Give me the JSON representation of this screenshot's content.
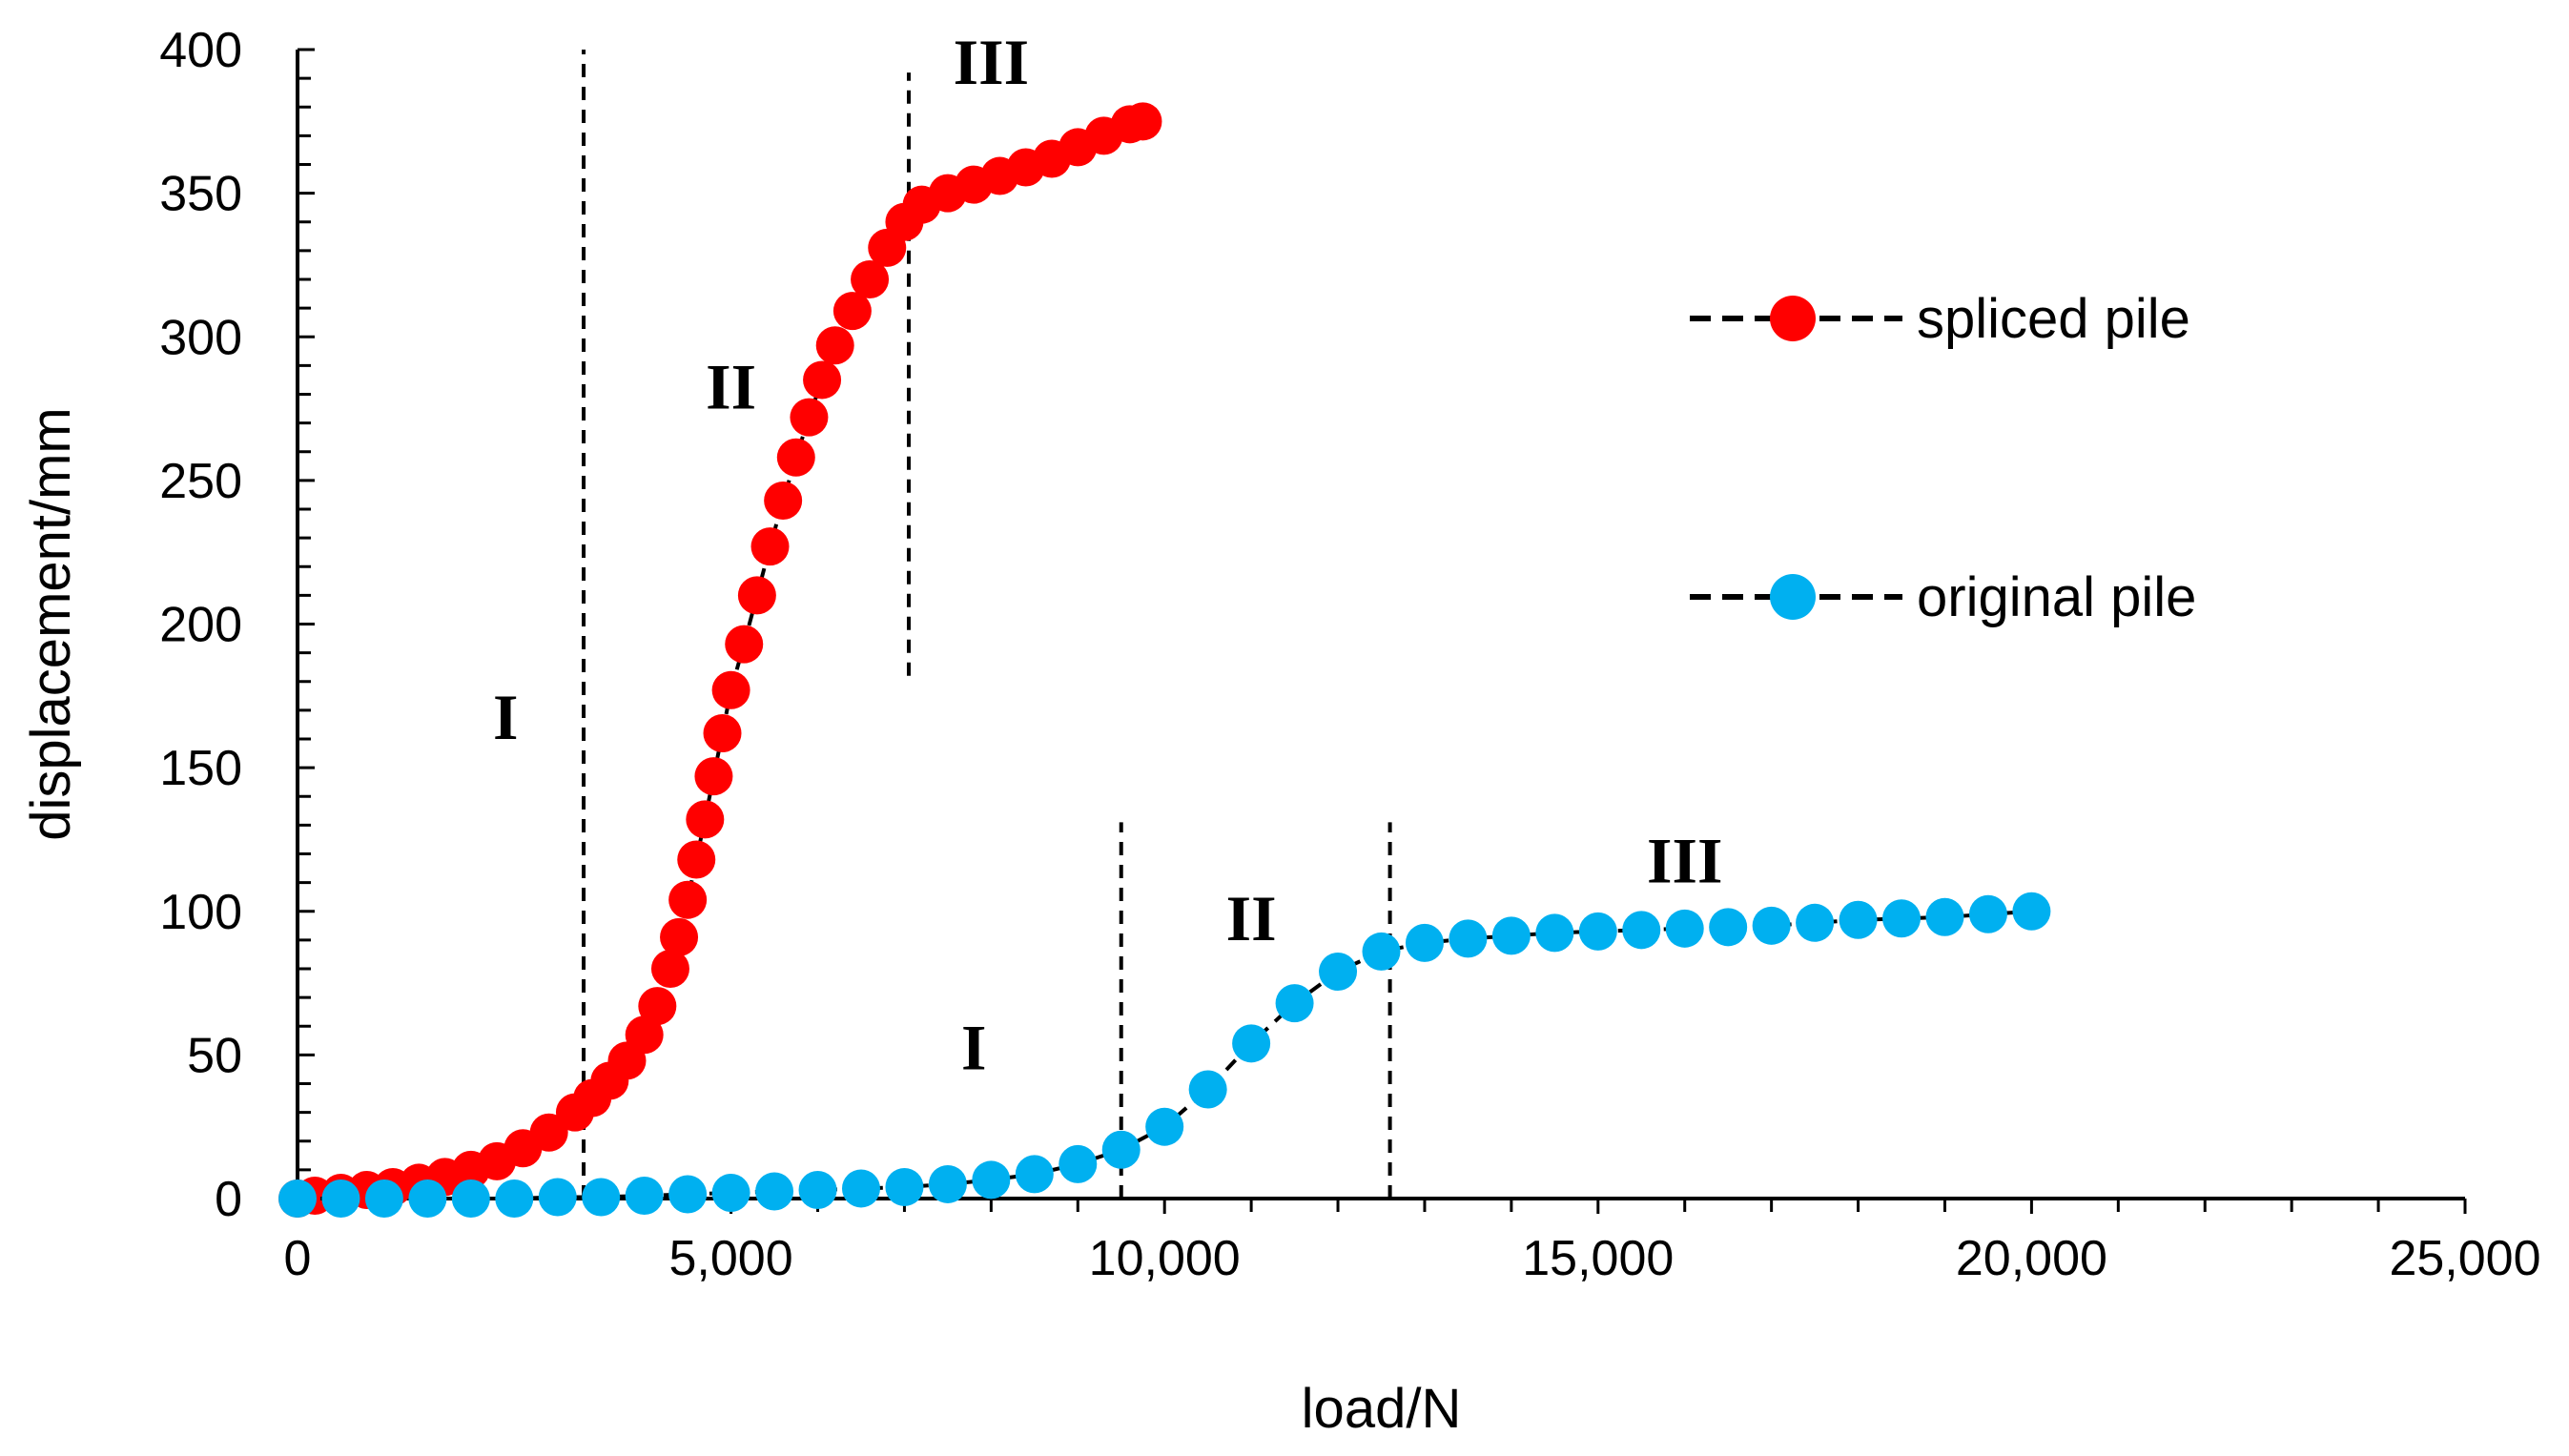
{
  "chart_data": {
    "type": "scatter",
    "title": "",
    "xlabel": "load/N",
    "ylabel": "displacement/mm",
    "xlim": [
      0,
      25000
    ],
    "ylim": [
      0,
      400
    ],
    "x_ticks": [
      0,
      5000,
      10000,
      15000,
      20000,
      25000
    ],
    "x_tick_labels": [
      "0",
      "5,000",
      "10,000",
      "15,000",
      "20,000",
      "25,000"
    ],
    "y_ticks": [
      0,
      50,
      100,
      150,
      200,
      250,
      300,
      350,
      400
    ],
    "y_tick_labels": [
      "0",
      "50",
      "100",
      "150",
      "200",
      "250",
      "300",
      "350",
      "400"
    ],
    "grid": false,
    "legend_position": "right",
    "series": [
      {
        "name": "spliced pile",
        "color": "#ff0000",
        "line_style": "dashed",
        "line_color": "#000000",
        "points": [
          [
            0,
            0
          ],
          [
            200,
            1
          ],
          [
            500,
            2
          ],
          [
            800,
            3
          ],
          [
            1100,
            4
          ],
          [
            1400,
            5.5
          ],
          [
            1700,
            7.5
          ],
          [
            2000,
            10
          ],
          [
            2300,
            13
          ],
          [
            2600,
            17.5
          ],
          [
            2900,
            23
          ],
          [
            3200,
            30
          ],
          [
            3400,
            35
          ],
          [
            3600,
            41
          ],
          [
            3800,
            48
          ],
          [
            4000,
            57
          ],
          [
            4150,
            67
          ],
          [
            4300,
            80
          ],
          [
            4400,
            91
          ],
          [
            4500,
            104
          ],
          [
            4600,
            118
          ],
          [
            4700,
            132
          ],
          [
            4800,
            147
          ],
          [
            4900,
            162
          ],
          [
            5000,
            177
          ],
          [
            5150,
            193
          ],
          [
            5300,
            210
          ],
          [
            5450,
            227
          ],
          [
            5600,
            243
          ],
          [
            5750,
            258
          ],
          [
            5900,
            272
          ],
          [
            6050,
            285
          ],
          [
            6200,
            297
          ],
          [
            6400,
            309
          ],
          [
            6600,
            320
          ],
          [
            6800,
            331
          ],
          [
            7000,
            340
          ],
          [
            7200,
            346
          ],
          [
            7500,
            350
          ],
          [
            7800,
            353
          ],
          [
            8100,
            356
          ],
          [
            8400,
            359
          ],
          [
            8700,
            362
          ],
          [
            9000,
            366
          ],
          [
            9300,
            370
          ],
          [
            9600,
            374
          ],
          [
            9750,
            375
          ]
        ]
      },
      {
        "name": "original pile",
        "color": "#00b0f0",
        "line_style": "dashed",
        "line_color": "#000000",
        "points": [
          [
            0,
            0
          ],
          [
            500,
            0
          ],
          [
            1000,
            0
          ],
          [
            1500,
            0
          ],
          [
            2000,
            0
          ],
          [
            2500,
            0
          ],
          [
            3000,
            0.5
          ],
          [
            3500,
            0.5
          ],
          [
            4000,
            1
          ],
          [
            4500,
            1.5
          ],
          [
            5000,
            2
          ],
          [
            5500,
            2.5
          ],
          [
            6000,
            3
          ],
          [
            6500,
            3.5
          ],
          [
            7000,
            4
          ],
          [
            7500,
            5
          ],
          [
            8000,
            6.5
          ],
          [
            8500,
            8.5
          ],
          [
            9000,
            12
          ],
          [
            9500,
            17
          ],
          [
            10000,
            25
          ],
          [
            10500,
            38
          ],
          [
            11000,
            54
          ],
          [
            11500,
            68
          ],
          [
            12000,
            79
          ],
          [
            12500,
            86
          ],
          [
            13000,
            89
          ],
          [
            13500,
            90.5
          ],
          [
            14000,
            91.5
          ],
          [
            14500,
            92.5
          ],
          [
            15000,
            93
          ],
          [
            15500,
            93.5
          ],
          [
            16000,
            94
          ],
          [
            16500,
            94.5
          ],
          [
            17000,
            95
          ],
          [
            17500,
            96
          ],
          [
            18000,
            97
          ],
          [
            18500,
            97.5
          ],
          [
            19000,
            98
          ],
          [
            19500,
            99
          ],
          [
            20000,
            100
          ]
        ]
      }
    ],
    "divider_lines": [
      {
        "x": 3300,
        "y_from": 0,
        "y_to": 400
      },
      {
        "x": 7050,
        "y_from": 182,
        "y_to": 392
      },
      {
        "x": 9500,
        "y_from": 0,
        "y_to": 131
      },
      {
        "x": 12600,
        "y_from": 0,
        "y_to": 131
      }
    ],
    "zone_labels": [
      {
        "text": "I",
        "x": 2400,
        "y": 160
      },
      {
        "text": "II",
        "x": 5000,
        "y": 275
      },
      {
        "text": "III",
        "x": 8000,
        "y": 388
      },
      {
        "text": "I",
        "x": 7800,
        "y": 45
      },
      {
        "text": "II",
        "x": 11000,
        "y": 90
      },
      {
        "text": "III",
        "x": 16000,
        "y": 110
      }
    ]
  }
}
